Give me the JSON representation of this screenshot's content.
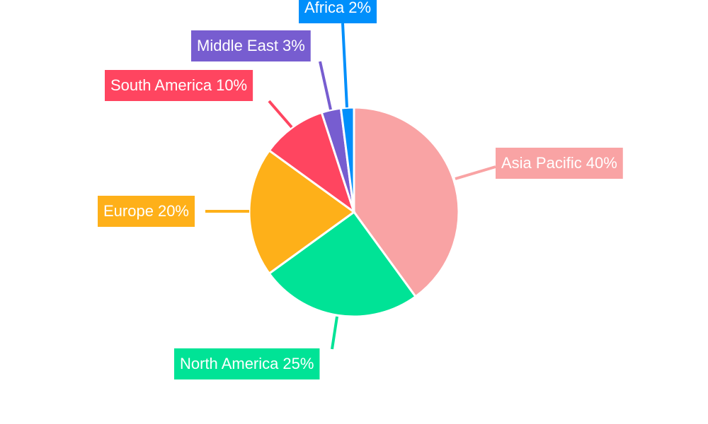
{
  "chart_data": {
    "type": "pie",
    "categories": [
      "Asia Pacific",
      "North America",
      "Europe",
      "South America",
      "Middle East",
      "Africa"
    ],
    "values": [
      40,
      25,
      20,
      10,
      3,
      2
    ],
    "value_labels": [
      "40%",
      "25%",
      "20%",
      "10%",
      "3%",
      "2%"
    ],
    "colors": [
      "#f9a3a4",
      "#00e396",
      "#feb019",
      "#ff4560",
      "#775dd0",
      "#008ffb"
    ]
  }
}
